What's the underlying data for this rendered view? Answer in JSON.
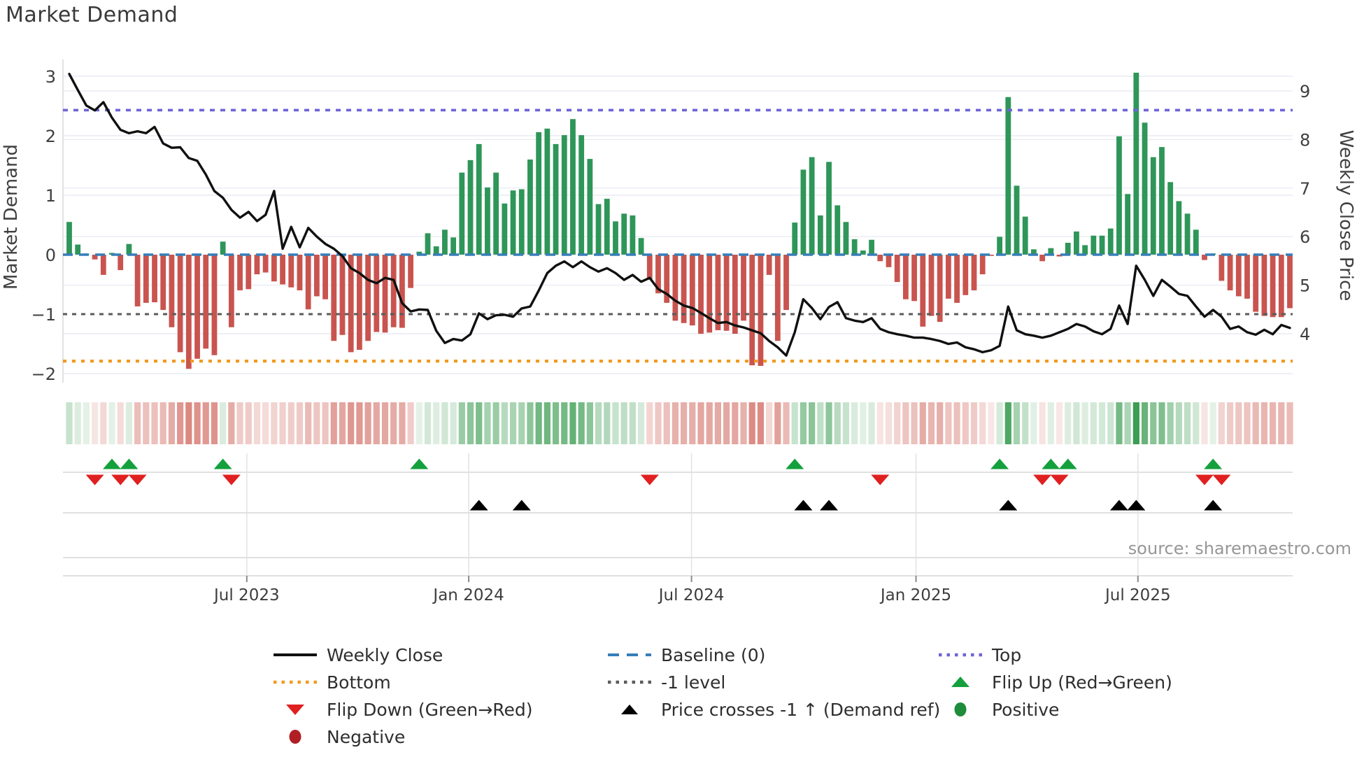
{
  "title": "Market Demand",
  "source_text": "source: sharemaestro.com",
  "axes": {
    "left_label": "Market Demand",
    "right_label": "Weekly Close Price",
    "left_ticks": [
      {
        "label": "3",
        "value": 3
      },
      {
        "label": "2",
        "value": 2
      },
      {
        "label": "1",
        "value": 1
      },
      {
        "label": "0",
        "value": 0
      },
      {
        "label": "−1",
        "value": -1
      },
      {
        "label": "−2",
        "value": -2
      }
    ],
    "right_ticks": [
      {
        "label": "9",
        "value": 9
      },
      {
        "label": "8",
        "value": 8
      },
      {
        "label": "7",
        "value": 7
      },
      {
        "label": "6",
        "value": 6
      },
      {
        "label": "5",
        "value": 5
      },
      {
        "label": "4",
        "value": 4
      }
    ],
    "x_ticks": [
      {
        "label": "Jul 2023",
        "week_index": 20.8
      },
      {
        "label": "Jan 2024",
        "week_index": 46.8
      },
      {
        "label": "Jul 2024",
        "week_index": 72.9
      },
      {
        "label": "Jan 2025",
        "week_index": 99.2
      },
      {
        "label": "Jul 2025",
        "week_index": 125.2
      }
    ]
  },
  "colors": {
    "bar_positive": "#2e9658",
    "bar_negative": "#c9544f",
    "price_line": "#101010",
    "baseline": "#377eb8",
    "top_line": "#6e64d8",
    "minus1_line": "#5b5b5b",
    "bottom_line": "#f29a1d",
    "flip_up": "#14a03c",
    "flip_down": "#e02020",
    "cross_marker": "#000000",
    "positive_dot": "#1e8c3a",
    "negative_dot": "#b01f24",
    "grid": "#e9ecf4",
    "heat_green_rgb": "46,150,70",
    "heat_red_rgb": "198,70,58"
  },
  "legend": {
    "items": [
      {
        "label": "Weekly Close",
        "swatch": "line-black",
        "col": 0,
        "row": 0
      },
      {
        "label": "Baseline (0)",
        "swatch": "dash-blue",
        "col": 1,
        "row": 0
      },
      {
        "label": "Top",
        "swatch": "dot-purple",
        "col": 2,
        "row": 0
      },
      {
        "label": "Bottom",
        "swatch": "dot-orange",
        "col": 0,
        "row": 1
      },
      {
        "label": "-1 level",
        "swatch": "dot-gray",
        "col": 1,
        "row": 1
      },
      {
        "label": "Flip Up (Red→Green)",
        "swatch": "triangle-up-green",
        "col": 2,
        "row": 1
      },
      {
        "label": "Flip Down (Green→Red)",
        "swatch": "triangle-down-red",
        "col": 0,
        "row": 2
      },
      {
        "label": "Price crosses -1 ↑ (Demand ref)",
        "swatch": "triangle-up-black",
        "col": 1,
        "row": 2
      },
      {
        "label": "Positive",
        "swatch": "circle-green",
        "col": 2,
        "row": 2
      },
      {
        "label": "Negative",
        "swatch": "circle-darkred",
        "col": 0,
        "row": 3
      }
    ]
  },
  "chart_data": {
    "type": "bar",
    "x_unit": "week",
    "series_names": [
      "Market Demand (bars)",
      "Weekly Close (line, right axis)"
    ],
    "demand_ylim": [
      -2.2,
      3.3
    ],
    "price_axis_ticks": [
      4,
      5,
      6,
      7,
      8,
      9
    ],
    "reference_levels": {
      "top": 2.43,
      "baseline": 0,
      "minus1": -1,
      "bottom": -1.79
    },
    "grid": true,
    "legend_position": "bottom",
    "market_demand": [
      0.55,
      0.17,
      0.02,
      -0.08,
      -0.34,
      0.03,
      -0.26,
      0.18,
      -0.87,
      -0.81,
      -0.8,
      -0.93,
      -1.22,
      -1.64,
      -1.92,
      -1.75,
      -1.58,
      -1.69,
      0.22,
      -1.22,
      -0.6,
      -0.58,
      -0.33,
      -0.3,
      -0.45,
      -0.5,
      -0.55,
      -0.6,
      -0.92,
      -0.7,
      -0.75,
      -1.45,
      -1.35,
      -1.64,
      -1.6,
      -1.45,
      -1.3,
      -1.31,
      -1.22,
      -1.23,
      -0.56,
      0.05,
      0.36,
      0.14,
      0.42,
      0.29,
      1.38,
      1.59,
      1.86,
      1.13,
      1.38,
      0.86,
      1.08,
      1.1,
      1.6,
      2.06,
      2.12,
      1.86,
      2.01,
      2.28,
      2.01,
      1.61,
      0.85,
      0.94,
      0.56,
      0.69,
      0.66,
      0.28,
      -0.42,
      -0.65,
      -0.81,
      -1.11,
      -1.15,
      -1.19,
      -1.33,
      -1.31,
      -1.27,
      -1.28,
      -1.33,
      -1.11,
      -1.86,
      -1.87,
      -0.34,
      -1.45,
      -0.93,
      0.54,
      1.43,
      1.64,
      0.66,
      1.56,
      0.83,
      0.55,
      0.26,
      0.07,
      0.25,
      -0.11,
      -0.21,
      -0.46,
      -0.75,
      -0.78,
      -1.21,
      -1.03,
      -1.13,
      -0.74,
      -0.81,
      -0.68,
      -0.6,
      -0.33,
      -0.02,
      0.3,
      2.65,
      1.16,
      0.64,
      0.09,
      -0.11,
      0.11,
      -0.03,
      0.2,
      0.39,
      0.16,
      0.32,
      0.32,
      0.44,
      1.99,
      1.02,
      3.06,
      2.22,
      1.64,
      1.81,
      1.22,
      0.9,
      0.69,
      0.42,
      -0.09,
      0.02,
      -0.44,
      -0.6,
      -0.7,
      -0.74,
      -0.96,
      -1.03,
      -1.05,
      -1.05,
      -0.9
    ],
    "weekly_close": [
      9.35,
      9.02,
      8.7,
      8.6,
      8.77,
      8.45,
      8.2,
      8.13,
      8.17,
      8.13,
      8.26,
      7.92,
      7.83,
      7.84,
      7.62,
      7.56,
      7.28,
      6.94,
      6.8,
      6.55,
      6.39,
      6.51,
      6.32,
      6.45,
      6.94,
      5.75,
      6.2,
      5.78,
      6.18,
      6.0,
      5.85,
      5.75,
      5.6,
      5.35,
      5.25,
      5.11,
      5.04,
      5.15,
      5.11,
      4.63,
      4.46,
      4.5,
      4.49,
      4.06,
      3.81,
      3.89,
      3.86,
      3.99,
      4.42,
      4.3,
      4.38,
      4.39,
      4.35,
      4.52,
      4.56,
      4.89,
      5.25,
      5.4,
      5.49,
      5.37,
      5.49,
      5.37,
      5.28,
      5.35,
      5.25,
      5.11,
      5.21,
      5.07,
      5.15,
      4.92,
      4.82,
      4.68,
      4.58,
      4.53,
      4.43,
      4.32,
      4.22,
      4.24,
      4.17,
      4.13,
      4.07,
      4.01,
      3.85,
      3.72,
      3.55,
      4.03,
      4.71,
      4.53,
      4.3,
      4.55,
      4.65,
      4.32,
      4.27,
      4.24,
      4.32,
      4.1,
      4.03,
      3.99,
      3.96,
      3.92,
      3.92,
      3.89,
      3.85,
      3.79,
      3.82,
      3.72,
      3.68,
      3.62,
      3.66,
      3.75,
      4.56,
      4.07,
      3.99,
      3.96,
      3.92,
      3.96,
      4.03,
      4.1,
      4.2,
      4.15,
      4.05,
      3.99,
      4.1,
      4.58,
      4.2,
      5.4,
      5.11,
      4.78,
      5.11,
      4.97,
      4.82,
      4.78,
      4.56,
      4.35,
      4.49,
      4.35,
      4.1,
      4.15,
      4.03,
      3.98,
      4.08,
      3.99,
      4.18,
      4.12
    ],
    "flip_up_idx": [
      5,
      7,
      18,
      41,
      85,
      109,
      115,
      117,
      134
    ],
    "flip_down_idx": [
      3,
      6,
      8,
      19,
      68,
      95,
      114,
      116,
      133,
      135
    ],
    "price_cross_idx": [
      48,
      53,
      86,
      89,
      110,
      123,
      125,
      134
    ]
  }
}
